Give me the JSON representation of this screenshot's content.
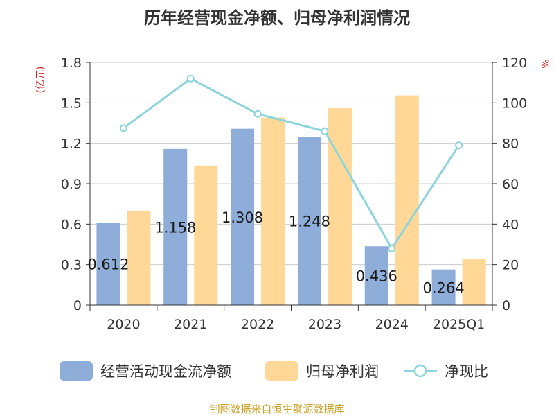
{
  "source_note": "制图数据来自恒生聚源数据库",
  "chart_data": {
    "type": "bar",
    "title": "历年经营现金净额、归母净利润情况",
    "categories": [
      "2020",
      "2021",
      "2022",
      "2023",
      "2024",
      "2025Q1"
    ],
    "y_left": {
      "unit": "(亿元)",
      "range": [
        0,
        1.8
      ],
      "ticks": [
        "0",
        "0.3",
        "0.6",
        "0.9",
        "1.2",
        "1.5",
        "1.8"
      ]
    },
    "y_right": {
      "unit": "%",
      "range": [
        0,
        120
      ],
      "ticks": [
        "0",
        "20",
        "40",
        "60",
        "80",
        "100",
        "120"
      ]
    },
    "grid": true,
    "legend_position": "bottom",
    "series": [
      {
        "name": "经营活动现金流净额",
        "kind": "bar",
        "axis": "left",
        "color": "#8eadd9",
        "values": [
          0.612,
          1.158,
          1.308,
          1.248,
          0.436,
          0.264
        ],
        "labels": [
          "0.612",
          "1.158",
          "1.308",
          "1.248",
          "0.436",
          "0.264"
        ]
      },
      {
        "name": "归母净利润",
        "kind": "bar",
        "axis": "left",
        "color": "#ffd797",
        "values": [
          0.7,
          1.035,
          1.39,
          1.46,
          1.555,
          0.34
        ]
      },
      {
        "name": "净现比",
        "kind": "line",
        "axis": "right",
        "color": "#8dd5dc",
        "values": [
          87.5,
          112,
          94.5,
          86,
          28,
          79
        ]
      }
    ]
  }
}
